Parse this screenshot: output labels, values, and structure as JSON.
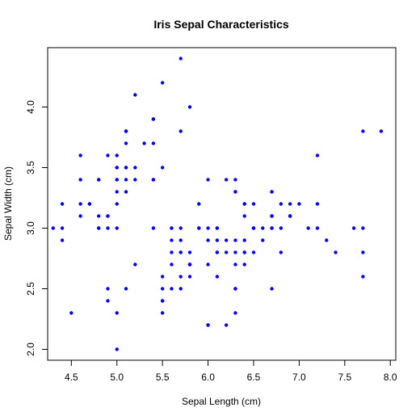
{
  "chart_data": {
    "type": "scatter",
    "title": "Iris Sepal Characteristics",
    "xlabel": "Sepal Length (cm)",
    "ylabel": "Sepal Width (cm)",
    "xlim": [
      4.24,
      8.06
    ],
    "ylim": [
      1.91,
      4.49
    ],
    "xticks": [
      4.5,
      5.0,
      5.5,
      6.0,
      6.5,
      7.0,
      7.5,
      8.0
    ],
    "xtick_labels": [
      "4.5",
      "5.0",
      "5.5",
      "6.0",
      "6.5",
      "7.0",
      "7.5",
      "8.0"
    ],
    "yticks": [
      2.0,
      2.5,
      3.0,
      3.5,
      4.0
    ],
    "ytick_labels": [
      "2.0",
      "2.5",
      "3.0",
      "3.5",
      "4.0"
    ],
    "grid": false,
    "legend": "none",
    "point_color": "#0000ff",
    "series": [
      {
        "x": [
          5.1,
          4.9,
          4.7,
          4.6,
          5.0,
          5.4,
          4.6,
          5.0,
          4.4,
          4.9,
          5.4,
          4.8,
          4.8,
          4.3,
          5.8,
          5.7,
          5.4,
          5.1,
          5.7,
          5.1,
          5.4,
          5.1,
          4.6,
          5.1,
          4.8,
          5.0,
          5.0,
          5.2,
          5.2,
          4.7,
          4.8,
          5.4,
          5.2,
          5.5,
          4.9,
          5.0,
          5.5,
          4.9,
          4.4,
          5.1,
          5.0,
          4.5,
          4.4,
          5.0,
          5.1,
          4.8,
          5.1,
          4.6,
          5.3,
          5.0,
          7.0,
          6.4,
          6.9,
          5.5,
          6.5,
          5.7,
          6.3,
          4.9,
          6.6,
          5.2,
          5.0,
          5.9,
          6.0,
          6.1,
          5.6,
          6.7,
          5.6,
          5.8,
          6.2,
          5.6,
          5.9,
          6.1,
          6.3,
          6.1,
          6.4,
          6.6,
          6.8,
          6.7,
          6.0,
          5.7,
          5.5,
          5.5,
          5.8,
          6.0,
          5.4,
          6.0,
          6.7,
          6.3,
          5.6,
          5.5,
          5.5,
          6.1,
          5.8,
          5.0,
          5.6,
          5.7,
          5.7,
          6.2,
          5.1,
          5.7,
          6.3,
          5.8,
          7.1,
          6.3,
          6.5,
          7.6,
          4.9,
          7.3,
          6.7,
          7.2,
          6.5,
          6.4,
          6.8,
          5.7,
          5.8,
          6.4,
          6.5,
          7.7,
          7.7,
          6.0,
          6.9,
          5.6,
          7.7,
          6.3,
          6.7,
          7.2,
          6.2,
          6.1,
          6.4,
          7.2,
          7.4,
          7.9,
          6.4,
          6.3,
          6.1,
          7.7,
          6.3,
          6.4,
          6.0,
          6.9,
          6.7,
          6.9,
          5.8,
          6.8,
          6.7,
          6.7,
          6.3,
          6.5,
          6.2,
          5.9
        ],
        "y": [
          3.5,
          3.0,
          3.2,
          3.1,
          3.6,
          3.9,
          3.4,
          3.4,
          2.9,
          3.1,
          3.7,
          3.4,
          3.0,
          3.0,
          4.0,
          4.4,
          3.9,
          3.5,
          3.8,
          3.8,
          3.4,
          3.7,
          3.6,
          3.3,
          3.4,
          3.0,
          3.4,
          3.5,
          3.4,
          3.2,
          3.1,
          3.4,
          4.1,
          4.2,
          3.1,
          3.2,
          3.5,
          3.6,
          3.0,
          3.4,
          3.5,
          2.3,
          3.2,
          3.5,
          3.8,
          3.0,
          3.8,
          3.2,
          3.7,
          3.3,
          3.2,
          3.2,
          3.1,
          2.3,
          2.8,
          2.8,
          3.3,
          2.4,
          2.9,
          2.7,
          2.0,
          3.0,
          2.2,
          2.9,
          2.9,
          3.1,
          3.0,
          2.7,
          2.2,
          2.5,
          3.2,
          2.8,
          2.5,
          2.8,
          2.9,
          3.0,
          2.8,
          3.0,
          2.9,
          2.6,
          2.4,
          2.4,
          2.7,
          2.7,
          3.0,
          3.4,
          3.1,
          2.3,
          3.0,
          2.5,
          2.6,
          3.0,
          2.6,
          2.3,
          2.7,
          3.0,
          2.9,
          2.9,
          2.5,
          2.8,
          3.3,
          2.7,
          3.0,
          2.9,
          3.0,
          3.0,
          2.5,
          2.9,
          2.5,
          3.6,
          3.2,
          2.7,
          3.0,
          2.5,
          2.8,
          3.2,
          3.0,
          3.8,
          2.6,
          2.2,
          3.2,
          2.8,
          2.8,
          2.7,
          3.3,
          3.2,
          2.8,
          3.0,
          2.8,
          3.0,
          2.8,
          3.8,
          2.8,
          2.8,
          2.6,
          3.0,
          3.4,
          3.1,
          3.0,
          3.1,
          3.1,
          3.1,
          2.7,
          3.2,
          3.3,
          3.0,
          2.5,
          3.0,
          3.4,
          3.0
        ]
      }
    ]
  }
}
